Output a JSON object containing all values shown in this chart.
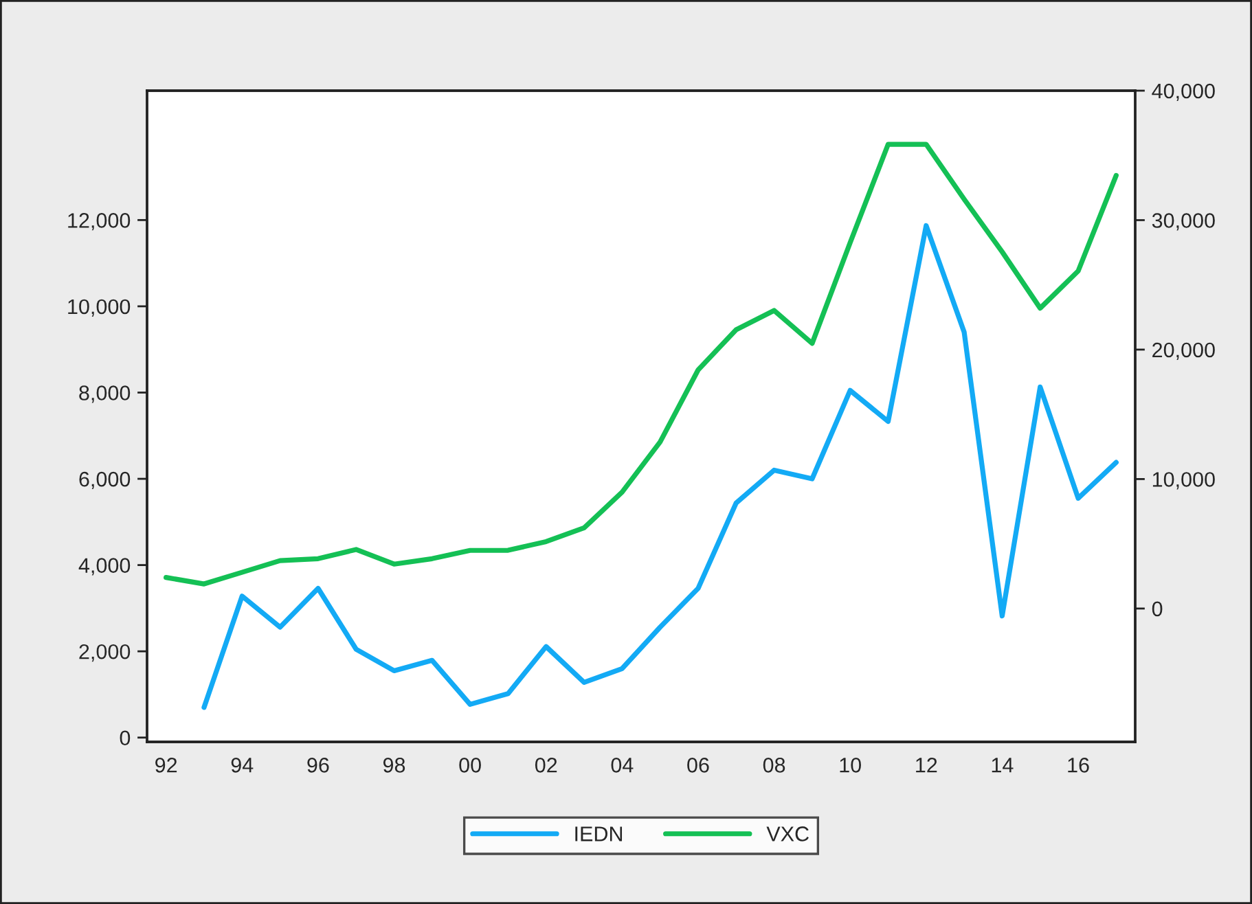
{
  "chart_data": {
    "type": "line",
    "categories": [
      "92",
      null,
      "94",
      null,
      "96",
      null,
      "98",
      null,
      "00",
      null,
      "02",
      null,
      "04",
      null,
      "06",
      null,
      "08",
      null,
      "10",
      null,
      "12",
      null,
      "14",
      null,
      "16",
      null
    ],
    "series": [
      {
        "name": "IEDN",
        "color": "#13aaf5",
        "values": [
          null,
          700,
          3280,
          2560,
          3460,
          2050,
          1550,
          1790,
          770,
          1020,
          2110,
          1280,
          1600,
          2560,
          3460,
          5440,
          6200,
          6000,
          8050,
          7330,
          11870,
          9400,
          2820,
          8130,
          5550,
          6380
        ]
      },
      {
        "name": "VXC",
        "color": "#14c055",
        "axis": "y2",
        "values": [
          2400,
          1900,
          2800,
          3700,
          3850,
          4560,
          3430,
          3850,
          4490,
          4500,
          5170,
          6230,
          8990,
          12870,
          18430,
          21540,
          23020,
          20480,
          28260,
          35860,
          35860,
          31620,
          27550,
          23200,
          26070,
          33450
        ]
      }
    ],
    "ylim": [
      -100,
      15000
    ],
    "yticks": [
      {
        "value": 0,
        "label": "0"
      },
      {
        "value": 2000,
        "label": "2,000"
      },
      {
        "value": 4000,
        "label": "4,000"
      },
      {
        "value": 6000,
        "label": "6,000"
      },
      {
        "value": 8000,
        "label": "8,000"
      },
      {
        "value": 10000,
        "label": "10,000"
      },
      {
        "value": 12000,
        "label": "12,000"
      }
    ],
    "y2lim": [
      -10300,
      40000
    ],
    "y2ticks": [
      {
        "value": 0,
        "label": "0"
      },
      {
        "value": 10000,
        "label": "10,000"
      },
      {
        "value": 20000,
        "label": "20,000"
      },
      {
        "value": 30000,
        "label": "30,000"
      },
      {
        "value": 40000,
        "label": "40,000"
      }
    ],
    "legend": "bottom",
    "grid": false
  }
}
